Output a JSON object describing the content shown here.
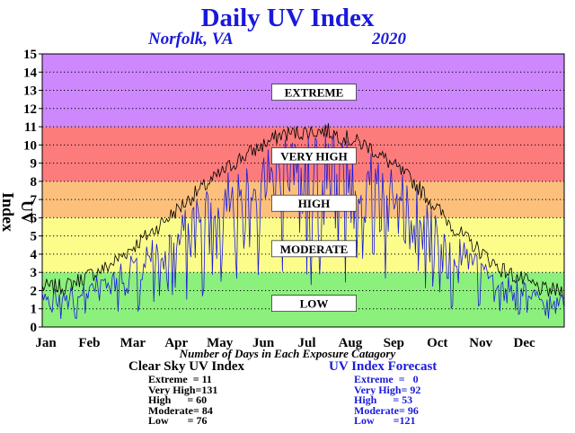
{
  "title": "Daily UV Index",
  "location": "Norfolk, VA",
  "year": "2020",
  "chart_data": {
    "type": "line",
    "ylabel": "UV Index",
    "ylim": [
      0,
      15
    ],
    "yticks": [
      0,
      1,
      2,
      3,
      4,
      5,
      6,
      7,
      8,
      9,
      10,
      11,
      12,
      13,
      14,
      15
    ],
    "months": [
      "Jan",
      "Feb",
      "Mar",
      "Apr",
      "May",
      "Jun",
      "Jul",
      "Aug",
      "Sep",
      "Oct",
      "Nov",
      "Dec"
    ],
    "grid": true,
    "bands": [
      {
        "label": "LOW",
        "from": 0,
        "to": 3,
        "color": "#8cf07c",
        "label_at": 1.3
      },
      {
        "label": "MODERATE",
        "from": 3,
        "to": 6,
        "color": "#fcfc8a",
        "label_at": 4.3
      },
      {
        "label": "HIGH",
        "from": 6,
        "to": 8,
        "color": "#fcc07c",
        "label_at": 6.8
      },
      {
        "label": "VERY HIGH",
        "from": 8,
        "to": 11,
        "color": "#fc7c7c",
        "label_at": 9.4
      },
      {
        "label": "EXTREME",
        "from": 11,
        "to": 15,
        "color": "#cc88fc",
        "label_at": 12.9
      }
    ],
    "series": [
      {
        "name": "Clear Sky UV Index",
        "color": "#000000",
        "monthly_values": [
          2.2,
          3.3,
          5.2,
          7.3,
          9.2,
          10.6,
          10.8,
          9.9,
          8.0,
          5.3,
          3.2,
          2.0
        ]
      },
      {
        "name": "UV Index Forecast",
        "color": "#1a1adb",
        "monthly_values": [
          1.6,
          2.3,
          3.6,
          5.4,
          6.9,
          8.0,
          8.4,
          7.6,
          6.0,
          3.8,
          2.3,
          1.5
        ]
      }
    ]
  },
  "subtitle": "Number of Days in Each Exposure Catagory",
  "clear_sky": {
    "heading": "Clear Sky UV Index",
    "rows": [
      "Extreme  = 11",
      "Very High=131",
      "High      = 60",
      "Moderate= 84",
      "Low       = 76"
    ]
  },
  "forecast": {
    "heading": "UV Index Forecast",
    "rows": [
      "Extreme  =   0",
      "Very High= 92",
      "High      = 53",
      "Moderate= 96",
      "Low       =121"
    ]
  }
}
